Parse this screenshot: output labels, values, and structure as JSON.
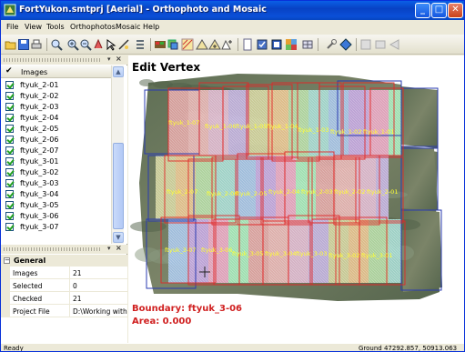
{
  "window": {
    "title": "FortYukon.smtprj [Aerial] - Orthophoto and Mosaic"
  },
  "menu": {
    "items": [
      "File",
      "View",
      "Tools",
      "Orthophotos",
      "Mosaic",
      "Help"
    ]
  },
  "toolbar": {
    "icons": [
      "open-icon",
      "save-icon",
      "print-icon",
      "zoom-icon",
      "zoom-in-icon",
      "zoom-out-icon",
      "pan-icon",
      "select-icon",
      "measure-icon",
      "list-icon",
      "palette-icon",
      "layers-icon",
      "seamline-icon",
      "triangle-icon",
      "triangle-plus-icon",
      "triangle-add-icon",
      "page-icon",
      "page-check-icon",
      "export-icon",
      "mosaic-icon",
      "grid-icon",
      "tool-icon",
      "diamond-icon",
      "disabled-icon-1",
      "disabled-icon-2",
      "disabled-icon-3"
    ]
  },
  "image_list": {
    "header_label": "Images",
    "items": [
      {
        "name": "ftyuk_2-01",
        "checked": true
      },
      {
        "name": "ftyuk_2-02",
        "checked": true
      },
      {
        "name": "ftyuk_2-03",
        "checked": true
      },
      {
        "name": "ftyuk_2-04",
        "checked": true
      },
      {
        "name": "ftyuk_2-05",
        "checked": true
      },
      {
        "name": "ftyuk_2-06",
        "checked": true
      },
      {
        "name": "ftyuk_2-07",
        "checked": true
      },
      {
        "name": "ftyuk_3-01",
        "checked": true
      },
      {
        "name": "ftyuk_3-02",
        "checked": true
      },
      {
        "name": "ftyuk_3-03",
        "checked": true
      },
      {
        "name": "ftyuk_3-04",
        "checked": true
      },
      {
        "name": "ftyuk_3-05",
        "checked": true
      },
      {
        "name": "ftyuk_3-06",
        "checked": true
      },
      {
        "name": "ftyuk_3-07",
        "checked": true
      }
    ]
  },
  "properties": {
    "group_label": "General",
    "rows": [
      {
        "key": "Images",
        "value": "21"
      },
      {
        "key": "Selected",
        "value": "0"
      },
      {
        "key": "Checked",
        "value": "21"
      },
      {
        "key": "Project File",
        "value": "D:\\Working with"
      }
    ]
  },
  "canvas": {
    "title": "Edit Vertex",
    "boundary_text": "Boundary: ftyuk_3-06",
    "area_text": "Area: 0.000",
    "tile_labels": [
      "ftyuk_1-07",
      "ftyuk_1-06",
      "ftyuk_1-05",
      "ftyuk_1-04",
      "ftyuk_1-03",
      "ftyuk_1-02",
      "ftyuk_1-01",
      "ftyuk_2-07",
      "ftyuk_2-06",
      "ftyuk_2-05",
      "ftyuk_2-04",
      "ftyuk_2-03",
      "ftyuk_2-02",
      "ftyuk_2-01",
      "ftyuk_3-07",
      "ftyuk_3-06",
      "ftyuk_3-05",
      "ftyuk_3-04",
      "ftyuk_3-03",
      "ftyuk_3-02",
      "ftyuk_3-01"
    ],
    "colors": {
      "boundary_red": "#e02828",
      "outline_blue": "#2a3bb0",
      "label_yellow": "#ffff30"
    }
  },
  "status": {
    "left": "Ready",
    "right": "Ground  47292.857, 50913.063"
  }
}
